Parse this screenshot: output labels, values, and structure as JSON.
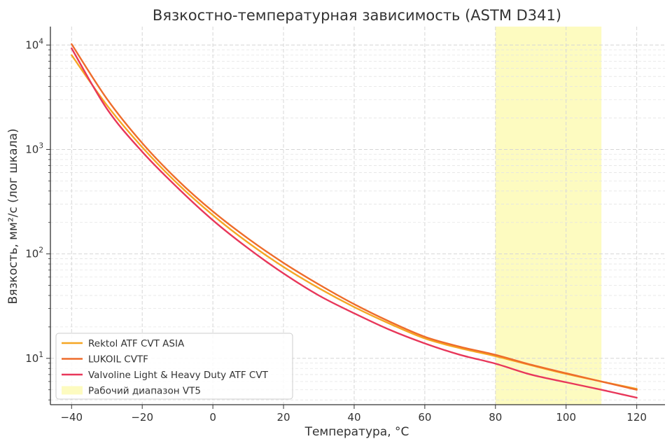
{
  "chart_data": {
    "type": "line",
    "title": "Вязкостно-температурная зависимость (ASTM D341)",
    "xlabel": "Температура, °C",
    "ylabel": "Вязкость, мм²/с (лог шкала)",
    "y_scale": "log",
    "xlim": [
      -46,
      128
    ],
    "ylim": [
      3.6,
      15000
    ],
    "x_ticks": [
      -40,
      -20,
      0,
      20,
      40,
      60,
      80,
      100,
      120
    ],
    "x_tick_labels": [
      "−40",
      "−20",
      "0",
      "20",
      "40",
      "60",
      "80",
      "100",
      "120"
    ],
    "y_ticks": [
      {
        "value": 10,
        "base": "10",
        "exp": "1"
      },
      {
        "value": 100,
        "base": "10",
        "exp": "2"
      },
      {
        "value": 1000,
        "base": "10",
        "exp": "3"
      },
      {
        "value": 10000,
        "base": "10",
        "exp": "4"
      }
    ],
    "grid": true,
    "legend_position": "bottom-left",
    "x": [
      -40,
      -30,
      -20,
      -10,
      0,
      10,
      20,
      30,
      40,
      50,
      60,
      70,
      80,
      90,
      100,
      110,
      120
    ],
    "series": [
      {
        "name": "Rektol ATF CVT ASIA",
        "color": "#f5a623",
        "values": [
          8000,
          2650,
          1050,
          470,
          235,
          128,
          75,
          47,
          31,
          21.5,
          15.5,
          12.5,
          10.5,
          8.6,
          7.1,
          6.0,
          5.1
        ]
      },
      {
        "name": "LUKOIL CVTF",
        "color": "#ee6c2b",
        "values": [
          10200,
          3050,
          1150,
          510,
          255,
          140,
          82,
          51,
          33,
          22.5,
          16.1,
          12.9,
          10.8,
          8.7,
          7.2,
          6.0,
          5.0
        ]
      },
      {
        "name": "Valvoline Light & Heavy Duty ATF CVT",
        "color": "#e8375a",
        "values": [
          9300,
          2450,
          950,
          430,
          210,
          113,
          65,
          40,
          27,
          18.8,
          13.9,
          10.8,
          8.9,
          7.0,
          5.9,
          5.0,
          4.2
        ]
      }
    ],
    "highlight_band": {
      "label": "Рабочий диапазон VT5",
      "x_start": 80,
      "x_end": 110,
      "color": "#fdfbc0"
    }
  }
}
